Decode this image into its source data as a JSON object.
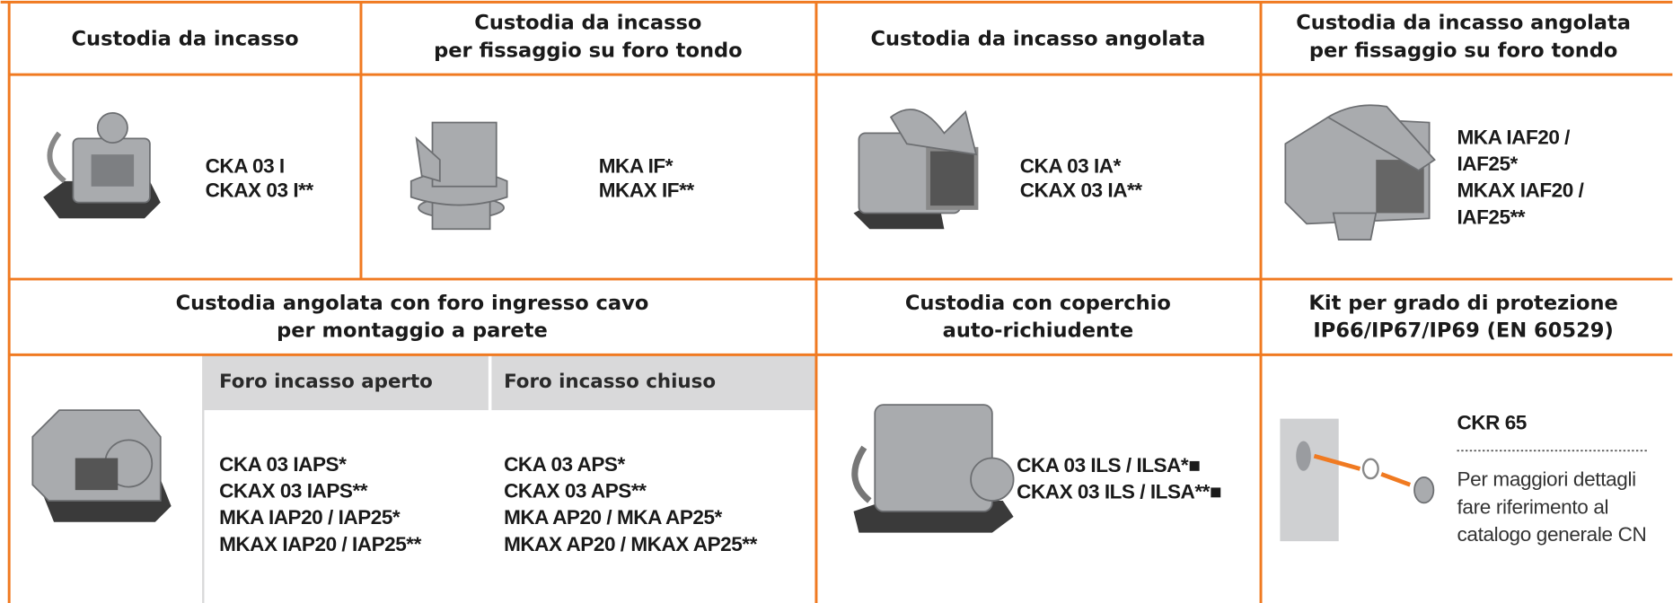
{
  "row1": [
    {
      "title": [
        "Custodia da incasso"
      ],
      "codes": [
        "CKA 03 I",
        "CKAX 03 I**"
      ]
    },
    {
      "title": [
        "Custodia da incasso",
        "per fissaggio su foro tondo"
      ],
      "codes": [
        "MKA IF*",
        "MKAX IF**"
      ]
    },
    {
      "title": [
        "Custodia da incasso angolata"
      ],
      "codes": [
        "CKA 03 IA*",
        "CKAX 03 IA**"
      ]
    },
    {
      "title": [
        "Custodia da incasso angolata",
        "per fissaggio su foro tondo"
      ],
      "codes": [
        "MKA IAF20 /",
        "IAF25*",
        "MKAX IAF20 /",
        "IAF25**"
      ]
    }
  ],
  "row2": {
    "wall_mount": {
      "title": [
        "Custodia angolata con foro ingresso cavo",
        "per montaggio a parete"
      ],
      "subcolumns": [
        {
          "heading": "Foro incasso aperto",
          "codes": [
            "CKA 03 IAPS*",
            "CKAX 03 IAPS**",
            "MKA IAP20 / IAP25*",
            "MKAX IAP20 / IAP25**"
          ]
        },
        {
          "heading": "Foro incasso chiuso",
          "codes": [
            "CKA 03 APS*",
            "CKAX 03 APS**",
            "MKA AP20 / MKA AP25*",
            "MKAX AP20 / MKAX AP25**"
          ]
        }
      ]
    },
    "self_closing": {
      "title": [
        "Custodia con coperchio",
        "auto-richiudente"
      ],
      "codes": [
        "CKA 03 ILS / ILSA*■",
        "CKAX 03 ILS / ILSA**■"
      ]
    },
    "kit": {
      "title": [
        "Kit per grado di protezione",
        "IP66/IP67/IP69 (EN 60529)"
      ],
      "code": "CKR 65",
      "note": [
        "Per maggiori dettagli",
        "fare riferimento al",
        "catalogo generale CN"
      ]
    }
  }
}
